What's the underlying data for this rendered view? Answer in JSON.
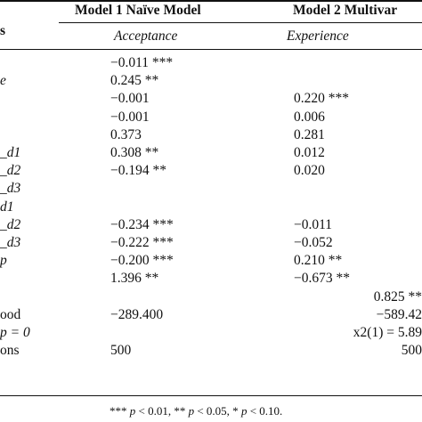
{
  "header": {
    "first_col_fragment": "s",
    "model1_title": "Model 1 Naïve Model",
    "model2_title": "Model 2 Multivar",
    "model1_sub": "Acceptance",
    "model2_sub": "Experience"
  },
  "rows": [
    {
      "label": "",
      "label_italic": false,
      "m1": "−0.011 ***",
      "m2": "",
      "m3": ""
    },
    {
      "label": "e",
      "label_italic": true,
      "m1": "0.245 **",
      "m2": "",
      "m3": ""
    },
    {
      "label": "",
      "label_italic": false,
      "m1": "−0.001",
      "m2": "0.220 ***",
      "m3": ""
    },
    {
      "label": "",
      "label_italic": false,
      "m1": "−0.001",
      "m2": "0.006",
      "m3": ""
    },
    {
      "label": "",
      "label_italic": false,
      "m1": "0.373",
      "m2": "0.281",
      "m3": ""
    },
    {
      "label": "_d1",
      "label_italic": true,
      "m1": "0.308 **",
      "m2": "0.012",
      "m3": ""
    },
    {
      "label": "_d2",
      "label_italic": true,
      "m1": "−0.194 **",
      "m2": "0.020",
      "m3": ""
    },
    {
      "label": "_d3",
      "label_italic": true,
      "m1": "",
      "m2": "",
      "m3": ""
    },
    {
      "label": "d1",
      "label_italic": true,
      "m1": "",
      "m2": "",
      "m3": ""
    },
    {
      "label": "_d2",
      "label_italic": true,
      "m1": "−0.234 ***",
      "m2": "−0.011",
      "m3": ""
    },
    {
      "label": "_d3",
      "label_italic": true,
      "m1": "−0.222 ***",
      "m2": "−0.052",
      "m3": ""
    },
    {
      "label": "p",
      "label_italic": true,
      "m1": "−0.200 ***",
      "m2": "0.210 **",
      "m3": ""
    },
    {
      "label": "",
      "label_italic": false,
      "m1": "1.396 **",
      "m2": "−0.673 **",
      "m3": ""
    },
    {
      "label": "",
      "label_italic": false,
      "m1": "",
      "m2": "",
      "m3": "0.825 **"
    },
    {
      "label": "ood",
      "label_italic": false,
      "m1": "−289.400",
      "m2": "",
      "m3": "−589.42"
    },
    {
      "label": "p = 0",
      "label_italic": true,
      "m1": "",
      "m2": "",
      "m3": "x2(1) = 5.89"
    },
    {
      "label": "ons",
      "label_italic": false,
      "m1": "500",
      "m2": "",
      "m3": "500"
    }
  ],
  "footnote": "*** p < 0.01, ** p < 0.05, * p < 0.10."
}
